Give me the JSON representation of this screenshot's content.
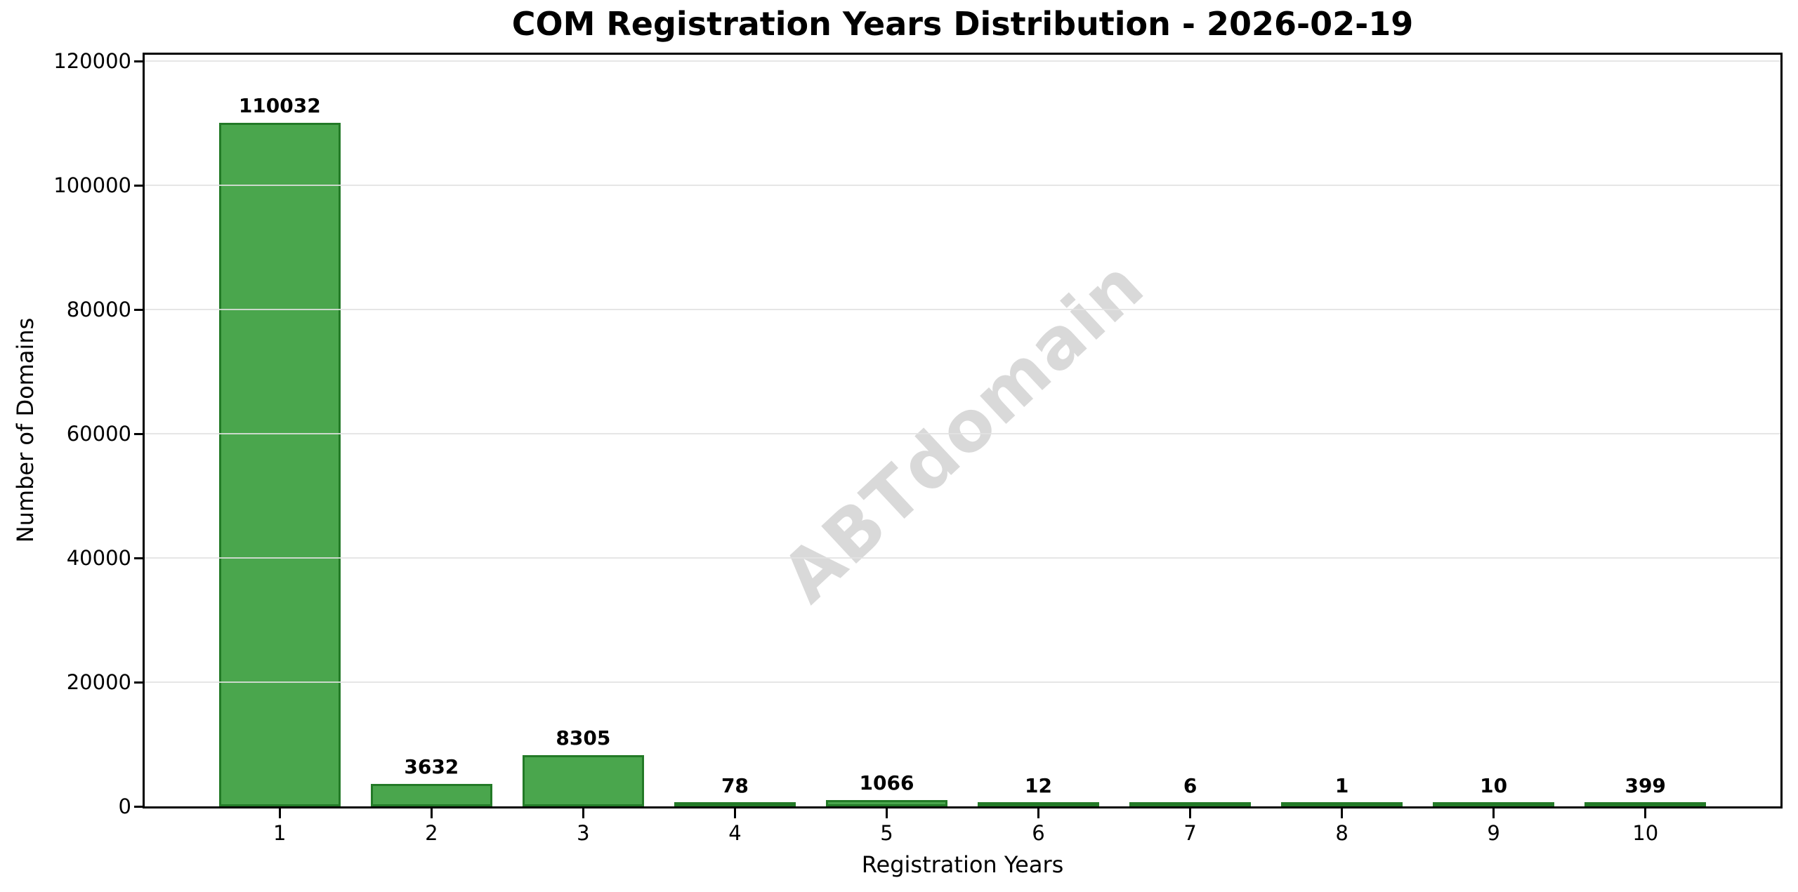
{
  "figure": {
    "background": "#ffffff",
    "watermark": "ABTdomain"
  },
  "chart_data": {
    "type": "bar",
    "title": "COM Registration Years Distribution - 2026-02-19",
    "xlabel": "Registration Years",
    "ylabel": "Number of Domains",
    "categories": [
      "1",
      "2",
      "3",
      "4",
      "5",
      "6",
      "7",
      "8",
      "9",
      "10"
    ],
    "values": [
      110032,
      3632,
      8305,
      78,
      1066,
      12,
      6,
      1,
      10,
      399
    ],
    "bar_value_labels": [
      "110032",
      "3632",
      "8305",
      "78",
      "1066",
      "12",
      "6",
      "1",
      "10",
      "399"
    ],
    "yticks": [
      0,
      20000,
      40000,
      60000,
      80000,
      100000,
      120000
    ],
    "ylim": [
      0,
      121035
    ],
    "xlim": [
      0.11,
      10.89
    ],
    "bar_width_fraction": 0.8,
    "grid": "horizontal",
    "legend": "none",
    "colors": {
      "bar_fill": "#4aa64d",
      "bar_edge": "#237a27",
      "grid": "#e2e2e2",
      "watermark": "#d9d9d9",
      "text": "#000000",
      "spine": "#000000"
    }
  }
}
